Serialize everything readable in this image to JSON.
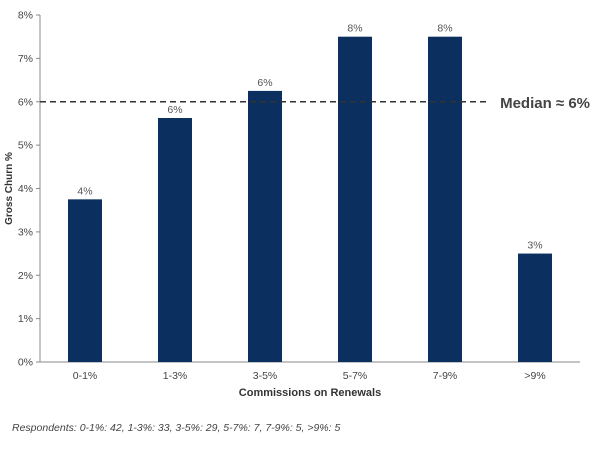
{
  "chart_data": {
    "type": "bar",
    "categories": [
      "0-1%",
      "1-3%",
      "3-5%",
      "5-7%",
      "7-9%",
      ">9%"
    ],
    "values": [
      3.75,
      5.625,
      6.25,
      7.5,
      7.5,
      2.5
    ],
    "data_labels": [
      "4%",
      "6%",
      "6%",
      "8%",
      "8%",
      "3%"
    ],
    "xlabel": "Commissions on Renewals",
    "ylabel": "Gross Churn %",
    "ylim": [
      0,
      8
    ],
    "yticks": [
      0,
      1,
      2,
      3,
      4,
      5,
      6,
      7,
      8
    ],
    "ytick_labels": [
      "0%",
      "1%",
      "2%",
      "3%",
      "4%",
      "5%",
      "6%",
      "7%",
      "8%"
    ],
    "grid": false,
    "bar_color": "#0b2f5e",
    "reference_line": {
      "value": 6,
      "label": "Median ≈ 6%",
      "style": "dashed",
      "color": "#333333"
    }
  },
  "footnote": "Respondents: 0-1%: 42, 1-3%: 33, 3-5%: 29, 5-7%: 7, 7-9%: 5, >9%: 5"
}
